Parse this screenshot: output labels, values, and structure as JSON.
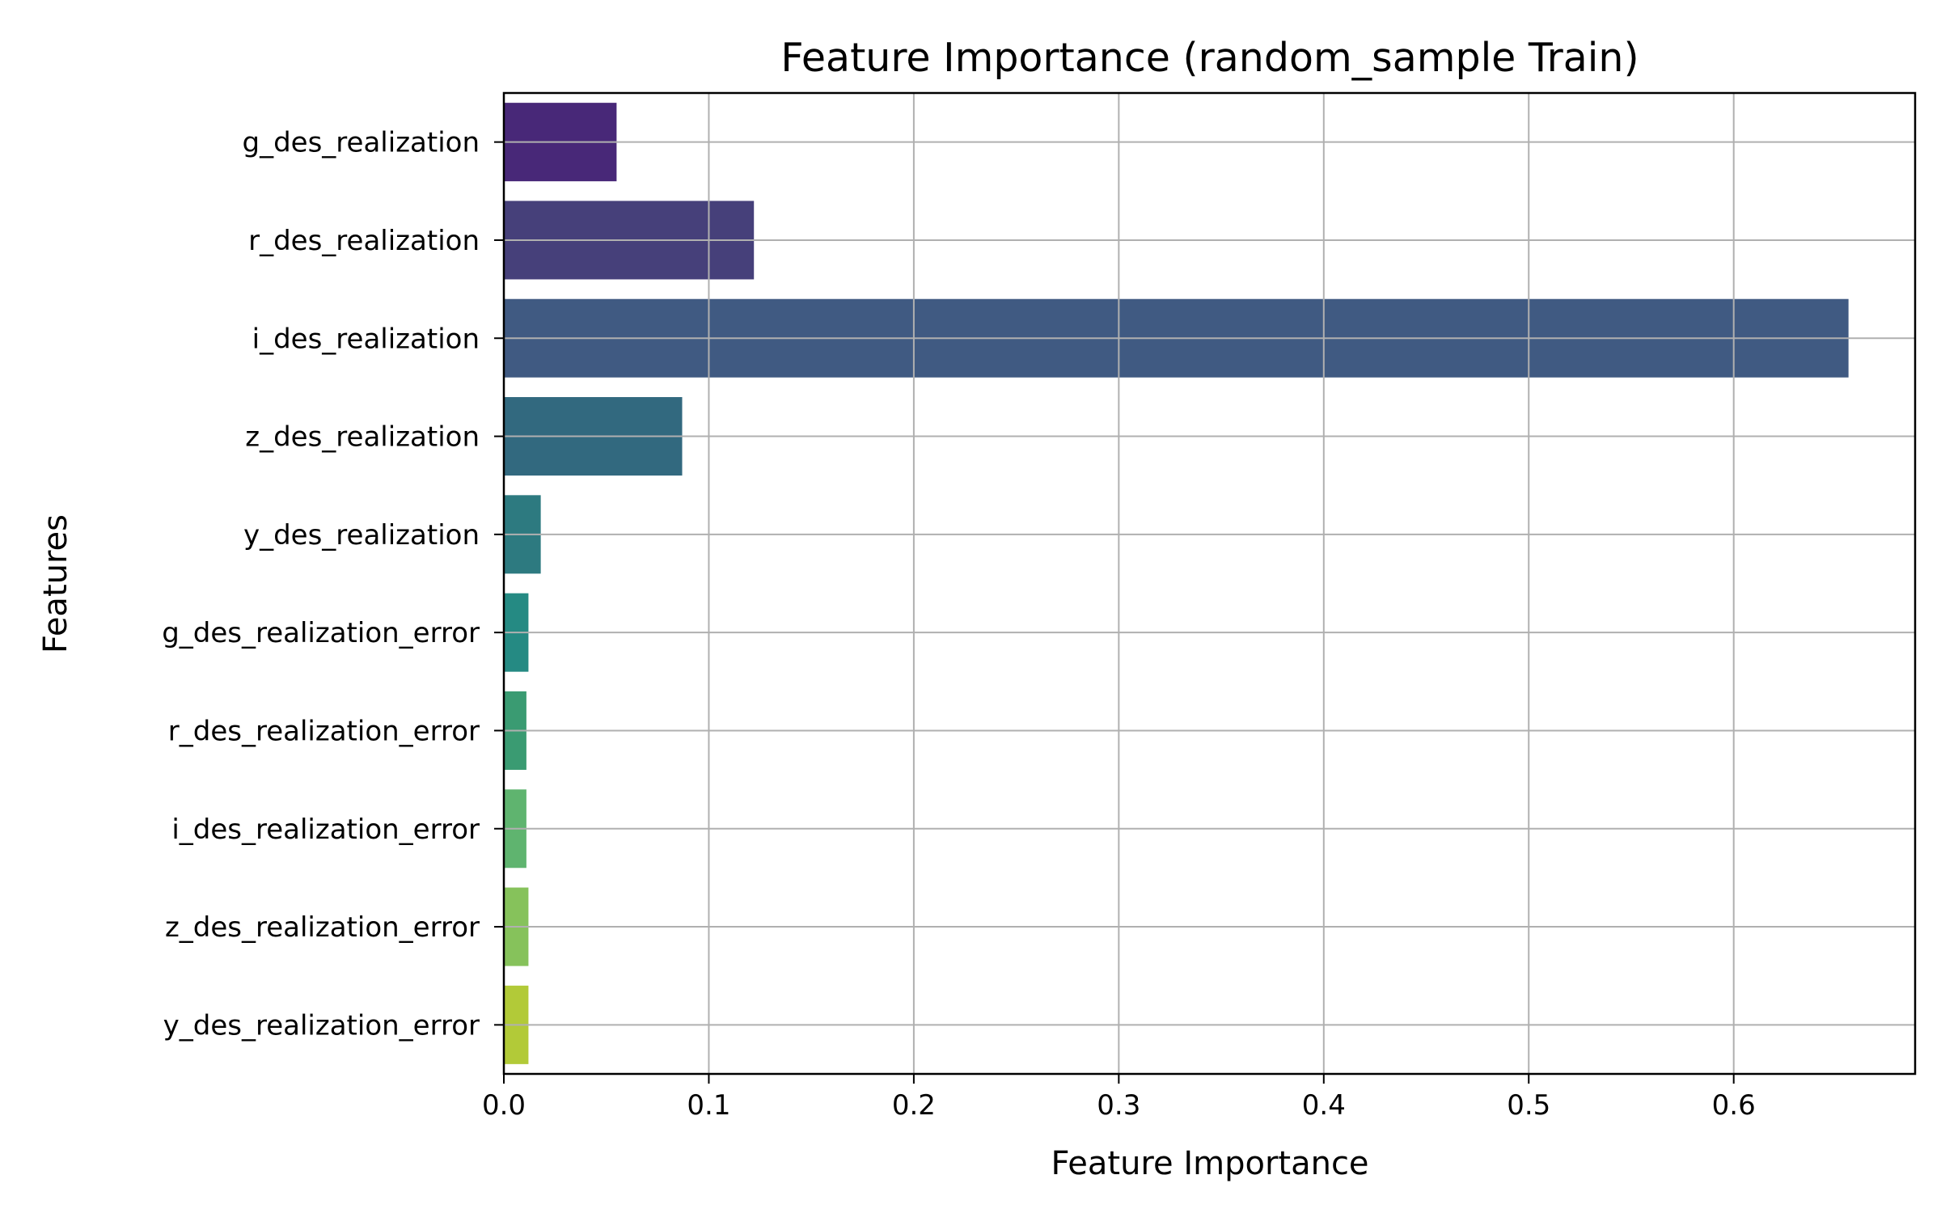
{
  "chart_data": {
    "type": "bar",
    "orientation": "horizontal",
    "title": "Feature Importance (random_sample Train)",
    "xlabel": "Feature Importance",
    "ylabel": "Features",
    "xlim": [
      0,
      0.6885
    ],
    "xticks": [
      0.0,
      0.1,
      0.2,
      0.3,
      0.4,
      0.5,
      0.6
    ],
    "xtick_labels": [
      "0.0",
      "0.1",
      "0.2",
      "0.3",
      "0.4",
      "0.5",
      "0.6"
    ],
    "grid": true,
    "categories": [
      "g_des_realization",
      "r_des_realization",
      "i_des_realization",
      "z_des_realization",
      "y_des_realization",
      "g_des_realization_error",
      "r_des_realization_error",
      "i_des_realization_error",
      "z_des_realization_error",
      "y_des_realization_error"
    ],
    "values": [
      0.055,
      0.122,
      0.656,
      0.087,
      0.018,
      0.012,
      0.011,
      0.011,
      0.012,
      0.012
    ],
    "colors": [
      "#482878",
      "#46407a",
      "#405a82",
      "#32697f",
      "#2d7a80",
      "#258a83",
      "#3a9b72",
      "#5fb46f",
      "#86c25b",
      "#b2ca38"
    ]
  }
}
